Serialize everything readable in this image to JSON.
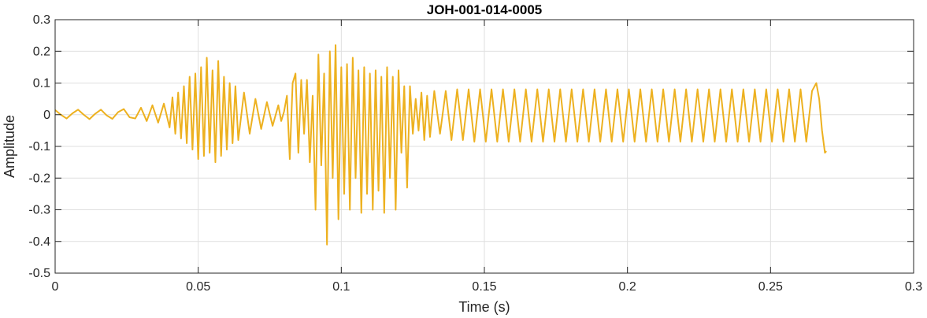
{
  "chart_data": {
    "type": "line",
    "title": "JOH-001-014-0005",
    "xlabel": "Time (s)",
    "ylabel": "Amplitude",
    "xlim": [
      0,
      0.3
    ],
    "ylim": [
      -0.5,
      0.3
    ],
    "xticks": [
      0,
      0.05,
      0.1,
      0.15,
      0.2,
      0.25,
      0.3
    ],
    "xtick_labels": [
      "0",
      "0.05",
      "0.1",
      "0.15",
      "0.2",
      "0.25",
      "0.3"
    ],
    "yticks": [
      -0.5,
      -0.4,
      -0.3,
      -0.2,
      -0.1,
      0,
      0.1,
      0.2,
      0.3
    ],
    "ytick_labels": [
      "-0.5",
      "-0.4",
      "-0.3",
      "-0.2",
      "-0.1",
      "0",
      "0.1",
      "0.2",
      "0.3"
    ],
    "grid": true,
    "series": [
      {
        "color": "#EDB120",
        "points": [
          [
            0.0,
            0.015
          ],
          [
            0.002,
            0.0
          ],
          [
            0.004,
            -0.012
          ],
          [
            0.006,
            0.004
          ],
          [
            0.008,
            0.016
          ],
          [
            0.01,
            0.0
          ],
          [
            0.012,
            -0.014
          ],
          [
            0.014,
            0.003
          ],
          [
            0.016,
            0.016
          ],
          [
            0.018,
            -0.002
          ],
          [
            0.02,
            -0.013
          ],
          [
            0.022,
            0.008
          ],
          [
            0.024,
            0.018
          ],
          [
            0.026,
            -0.008
          ],
          [
            0.028,
            -0.012
          ],
          [
            0.03,
            0.022
          ],
          [
            0.032,
            -0.02
          ],
          [
            0.034,
            0.03
          ],
          [
            0.036,
            -0.025
          ],
          [
            0.038,
            0.035
          ],
          [
            0.04,
            -0.04
          ],
          [
            0.041,
            0.055
          ],
          [
            0.042,
            -0.06
          ],
          [
            0.043,
            0.07
          ],
          [
            0.044,
            -0.075
          ],
          [
            0.045,
            0.09
          ],
          [
            0.046,
            -0.09
          ],
          [
            0.047,
            0.12
          ],
          [
            0.048,
            -0.11
          ],
          [
            0.049,
            0.13
          ],
          [
            0.05,
            -0.14
          ],
          [
            0.051,
            0.15
          ],
          [
            0.052,
            -0.13
          ],
          [
            0.053,
            0.18
          ],
          [
            0.054,
            -0.12
          ],
          [
            0.055,
            0.14
          ],
          [
            0.056,
            -0.15
          ],
          [
            0.057,
            0.17
          ],
          [
            0.058,
            -0.13
          ],
          [
            0.059,
            0.12
          ],
          [
            0.06,
            -0.11
          ],
          [
            0.061,
            0.1
          ],
          [
            0.062,
            -0.09
          ],
          [
            0.063,
            0.09
          ],
          [
            0.064,
            -0.08
          ],
          [
            0.066,
            0.07
          ],
          [
            0.068,
            -0.06
          ],
          [
            0.07,
            0.05
          ],
          [
            0.072,
            -0.045
          ],
          [
            0.074,
            0.04
          ],
          [
            0.076,
            -0.035
          ],
          [
            0.078,
            0.03
          ],
          [
            0.079,
            -0.02
          ],
          [
            0.08,
            0.01
          ],
          [
            0.081,
            0.06
          ],
          [
            0.082,
            -0.14
          ],
          [
            0.083,
            0.1
          ],
          [
            0.084,
            0.13
          ],
          [
            0.085,
            -0.12
          ],
          [
            0.086,
            0.11
          ],
          [
            0.087,
            -0.06
          ],
          [
            0.088,
            0.11
          ],
          [
            0.089,
            -0.15
          ],
          [
            0.09,
            0.06
          ],
          [
            0.091,
            -0.3
          ],
          [
            0.092,
            0.19
          ],
          [
            0.093,
            -0.16
          ],
          [
            0.094,
            0.13
          ],
          [
            0.095,
            -0.41
          ],
          [
            0.096,
            0.2
          ],
          [
            0.097,
            -0.2
          ],
          [
            0.098,
            0.22
          ],
          [
            0.099,
            -0.33
          ],
          [
            0.1,
            0.15
          ],
          [
            0.101,
            -0.25
          ],
          [
            0.102,
            0.16
          ],
          [
            0.103,
            -0.3
          ],
          [
            0.104,
            0.18
          ],
          [
            0.105,
            -0.2
          ],
          [
            0.106,
            0.14
          ],
          [
            0.107,
            -0.31
          ],
          [
            0.108,
            0.15
          ],
          [
            0.109,
            -0.25
          ],
          [
            0.11,
            0.13
          ],
          [
            0.111,
            -0.3
          ],
          [
            0.112,
            0.14
          ],
          [
            0.113,
            -0.24
          ],
          [
            0.114,
            0.12
          ],
          [
            0.115,
            -0.31
          ],
          [
            0.116,
            0.15
          ],
          [
            0.117,
            -0.2
          ],
          [
            0.118,
            0.12
          ],
          [
            0.119,
            -0.3
          ],
          [
            0.12,
            0.14
          ],
          [
            0.121,
            -0.12
          ],
          [
            0.122,
            0.09
          ],
          [
            0.123,
            -0.23
          ],
          [
            0.124,
            0.09
          ],
          [
            0.125,
            -0.06
          ],
          [
            0.126,
            0.05
          ],
          [
            0.127,
            -0.05
          ],
          [
            0.128,
            0.07
          ],
          [
            0.129,
            -0.08
          ],
          [
            0.13,
            0.06
          ],
          [
            0.131,
            -0.07
          ],
          [
            0.1325,
            0.075
          ],
          [
            0.1345,
            -0.06
          ],
          [
            0.1365,
            0.075
          ],
          [
            0.1385,
            -0.08
          ],
          [
            0.1405,
            0.08
          ],
          [
            0.1425,
            -0.08
          ],
          [
            0.1445,
            0.08
          ],
          [
            0.1465,
            -0.085
          ],
          [
            0.1485,
            0.08
          ],
          [
            0.1505,
            -0.085
          ],
          [
            0.1525,
            0.08
          ],
          [
            0.1545,
            -0.085
          ],
          [
            0.1565,
            0.08
          ],
          [
            0.1585,
            -0.085
          ],
          [
            0.1605,
            0.08
          ],
          [
            0.1625,
            -0.085
          ],
          [
            0.1645,
            0.08
          ],
          [
            0.1665,
            -0.085
          ],
          [
            0.1685,
            0.08
          ],
          [
            0.1705,
            -0.085
          ],
          [
            0.1725,
            0.08
          ],
          [
            0.1745,
            -0.085
          ],
          [
            0.1765,
            0.08
          ],
          [
            0.1785,
            -0.085
          ],
          [
            0.1805,
            0.08
          ],
          [
            0.1825,
            -0.085
          ],
          [
            0.1845,
            0.08
          ],
          [
            0.1865,
            -0.085
          ],
          [
            0.1885,
            0.08
          ],
          [
            0.1905,
            -0.085
          ],
          [
            0.1925,
            0.08
          ],
          [
            0.1945,
            -0.085
          ],
          [
            0.1965,
            0.08
          ],
          [
            0.1985,
            -0.085
          ],
          [
            0.2005,
            0.08
          ],
          [
            0.2025,
            -0.085
          ],
          [
            0.2045,
            0.08
          ],
          [
            0.2065,
            -0.085
          ],
          [
            0.2085,
            0.08
          ],
          [
            0.2105,
            -0.085
          ],
          [
            0.2125,
            0.08
          ],
          [
            0.2145,
            -0.085
          ],
          [
            0.2165,
            0.08
          ],
          [
            0.2185,
            -0.085
          ],
          [
            0.2205,
            0.08
          ],
          [
            0.2225,
            -0.085
          ],
          [
            0.2245,
            0.08
          ],
          [
            0.2265,
            -0.085
          ],
          [
            0.2285,
            0.08
          ],
          [
            0.2305,
            -0.085
          ],
          [
            0.2325,
            0.08
          ],
          [
            0.2345,
            -0.085
          ],
          [
            0.2365,
            0.08
          ],
          [
            0.2385,
            -0.085
          ],
          [
            0.2405,
            0.08
          ],
          [
            0.2425,
            -0.085
          ],
          [
            0.2445,
            0.08
          ],
          [
            0.2465,
            -0.085
          ],
          [
            0.2485,
            0.08
          ],
          [
            0.2505,
            -0.085
          ],
          [
            0.2525,
            0.08
          ],
          [
            0.2545,
            -0.085
          ],
          [
            0.2565,
            0.08
          ],
          [
            0.2585,
            -0.085
          ],
          [
            0.2605,
            0.08
          ],
          [
            0.2625,
            -0.085
          ],
          [
            0.2645,
            0.075
          ],
          [
            0.266,
            0.1
          ],
          [
            0.267,
            0.05
          ],
          [
            0.268,
            -0.05
          ],
          [
            0.269,
            -0.12
          ],
          [
            0.2695,
            -0.115
          ]
        ]
      }
    ]
  }
}
